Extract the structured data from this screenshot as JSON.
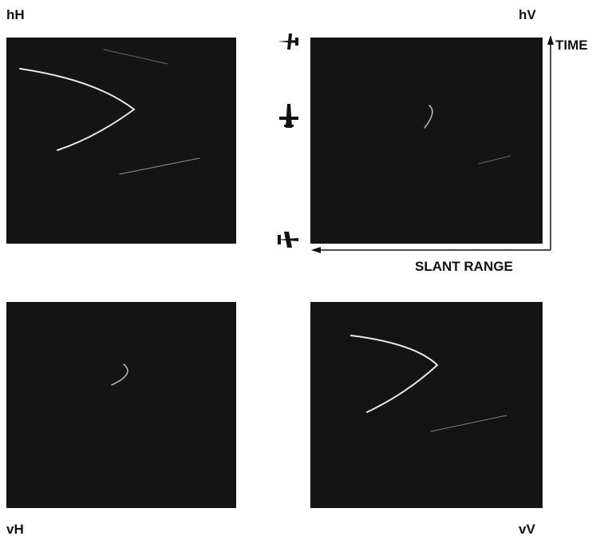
{
  "panels": [
    {
      "label": "hH"
    },
    {
      "label": "hV"
    },
    {
      "label": "vH"
    },
    {
      "label": "vV"
    }
  ],
  "axes": {
    "time": "TIME",
    "range": "SLANT RANGE"
  }
}
